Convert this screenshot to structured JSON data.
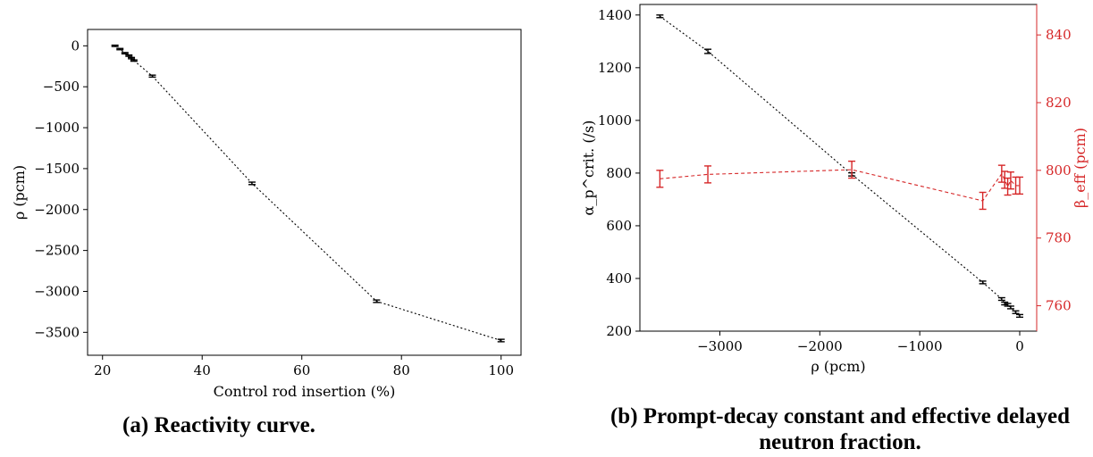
{
  "chart_data": [
    {
      "id": "a",
      "type": "line",
      "xlabel": "Control rod insertion (%)",
      "ylabel": "ρ (pcm)",
      "xlim": [
        17,
        104
      ],
      "ylim": [
        -3780,
        200
      ],
      "xticks": [
        20,
        40,
        60,
        80,
        100
      ],
      "yticks": [
        0,
        -500,
        -1000,
        -1500,
        -2000,
        -2500,
        -3000,
        -3500
      ],
      "line_style": "dotted",
      "color": "#000000",
      "x": [
        22.5,
        23.5,
        24.5,
        25.3,
        25.8,
        26.3,
        30.0,
        50.0,
        75.0,
        100.0
      ],
      "y": [
        0,
        -40,
        -90,
        -120,
        -150,
        -180,
        -370,
        -1680,
        -3120,
        -3600
      ],
      "err": [
        8,
        8,
        8,
        8,
        8,
        8,
        12,
        15,
        15,
        15
      ]
    },
    {
      "id": "b",
      "type": "line",
      "xlabel": "ρ (pcm)",
      "ylabel": "α_p^crit. (/s)",
      "y2label": "β_eff (pcm)",
      "xlim": [
        -3800,
        170
      ],
      "ylim": [
        200,
        1440
      ],
      "y2lim": [
        752.5,
        849
      ],
      "xticks": [
        -3000,
        -2000,
        -1000,
        0
      ],
      "yticks": [
        200,
        400,
        600,
        800,
        1000,
        1200,
        1400
      ],
      "y2ticks": [
        760,
        780,
        800,
        820,
        840
      ],
      "series": [
        {
          "axis": "left",
          "color": "#000000",
          "line_style": "dotted",
          "x": [
            -3600,
            -3120,
            -1680,
            -370,
            -180,
            -150,
            -120,
            -90,
            -40,
            0
          ],
          "y": [
            1395,
            1262,
            795,
            385,
            322,
            305,
            300,
            290,
            272,
            258
          ],
          "err": [
            5,
            8,
            6,
            5,
            5,
            5,
            5,
            5,
            5,
            5
          ]
        },
        {
          "axis": "right",
          "color": "#d62728",
          "line_style": "dashed",
          "x": [
            -3600,
            -3120,
            -1680,
            -370,
            -180,
            -150,
            -120,
            -90,
            -40,
            0
          ],
          "y": [
            797.5,
            798.8,
            800.2,
            791.0,
            799.0,
            797.2,
            795.2,
            797.0,
            795.5,
            795.5
          ],
          "err": [
            2.5,
            2.5,
            2.5,
            2.5,
            2.5,
            2.5,
            2.5,
            2.5,
            2.5,
            2.5
          ]
        }
      ]
    }
  ],
  "captions": {
    "a": "(a) Reactivity curve.",
    "b": "(b) Prompt-decay constant and effective delayed neutron fraction."
  }
}
